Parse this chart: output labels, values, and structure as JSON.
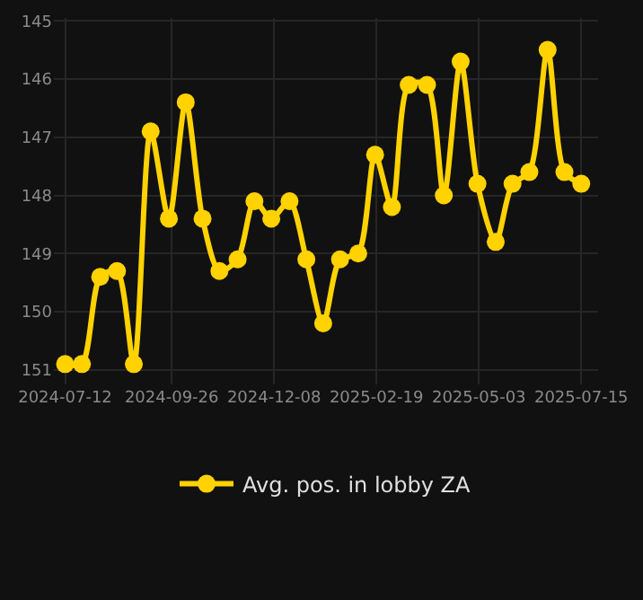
{
  "chart_data": {
    "type": "line",
    "x": [
      "2024-07-12",
      "2024-07-24",
      "2024-08-06",
      "2024-08-18",
      "2024-08-30",
      "2024-09-11",
      "2024-09-24",
      "2024-10-06",
      "2024-10-18",
      "2024-10-30",
      "2024-11-12",
      "2024-11-24",
      "2024-12-06",
      "2024-12-19",
      "2024-12-31",
      "2025-01-12",
      "2025-01-24",
      "2025-02-06",
      "2025-02-18",
      "2025-03-02",
      "2025-03-14",
      "2025-03-27",
      "2025-04-08",
      "2025-04-20",
      "2025-05-02",
      "2025-05-15",
      "2025-05-27",
      "2025-06-08",
      "2025-06-21",
      "2025-07-03",
      "2025-07-15"
    ],
    "series": [
      {
        "name": "Avg. pos. in lobby ZA",
        "color": "#ffd200",
        "values": [
          150.9,
          150.9,
          149.4,
          149.3,
          150.9,
          146.9,
          148.4,
          146.4,
          148.4,
          149.3,
          149.1,
          148.1,
          148.4,
          148.1,
          149.1,
          150.2,
          149.1,
          149.0,
          147.3,
          148.2,
          146.1,
          146.1,
          148.0,
          145.7,
          147.8,
          148.8,
          147.8,
          147.6,
          145.5,
          147.6,
          147.8
        ]
      }
    ],
    "xlim": [
      "2024-07-04",
      "2025-07-27"
    ],
    "xticks": [
      {
        "value": "2024-07-12",
        "label": "2024-07-12"
      },
      {
        "value": "2024-09-26",
        "label": "2024-09-26"
      },
      {
        "value": "2024-12-08",
        "label": "2024-12-08"
      },
      {
        "value": "2025-02-19",
        "label": "2025-02-19"
      },
      {
        "value": "2025-05-03",
        "label": "2025-05-03"
      },
      {
        "value": "2025-07-15",
        "label": "2025-07-15"
      }
    ],
    "ylim": [
      151.25,
      144.95
    ],
    "yticks": [
      145,
      146,
      147,
      148,
      149,
      150,
      151
    ],
    "grid": true,
    "legend": "bottom",
    "marker": "circle",
    "line_style": "solid"
  }
}
